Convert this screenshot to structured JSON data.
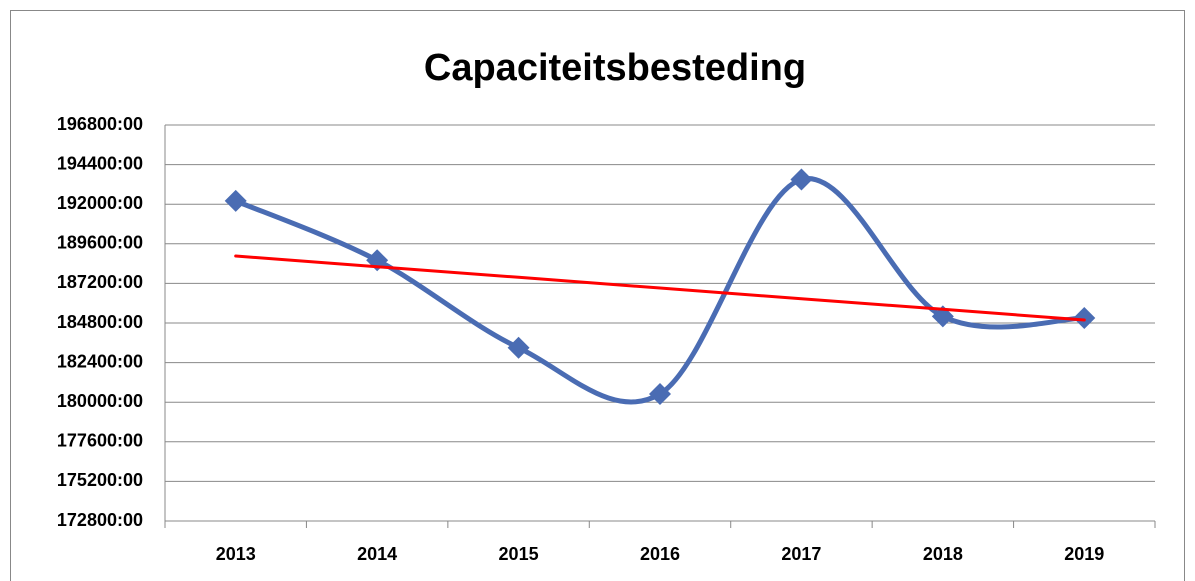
{
  "chart_data": {
    "type": "line",
    "title": "Capaciteitsbesteding",
    "categories": [
      "2013",
      "2014",
      "2015",
      "2016",
      "2017",
      "2018",
      "2019"
    ],
    "series": [
      {
        "color": "#4a6cb3",
        "smooth": true,
        "marker": "diamond",
        "values": [
          192200,
          188600,
          183300,
          180500,
          193500,
          185200,
          185100
        ]
      },
      {
        "color": "#ff0000",
        "smooth": false,
        "marker": "none",
        "values": [
          188860,
          188210,
          187570,
          186920,
          186270,
          185630,
          184980
        ]
      }
    ],
    "ylim": [
      172800,
      196800
    ],
    "yticks": [
      {
        "value": 172800,
        "label": "172800:00"
      },
      {
        "value": 175200,
        "label": "175200:00"
      },
      {
        "value": 177600,
        "label": "177600:00"
      },
      {
        "value": 180000,
        "label": "180000:00"
      },
      {
        "value": 182400,
        "label": "182400:00"
      },
      {
        "value": 184800,
        "label": "184800:00"
      },
      {
        "value": 187200,
        "label": "187200:00"
      },
      {
        "value": 189600,
        "label": "189600:00"
      },
      {
        "value": 192000,
        "label": "192000:00"
      },
      {
        "value": 194400,
        "label": "194400:00"
      },
      {
        "value": 196800,
        "label": "196800:00"
      }
    ],
    "grid": true
  }
}
